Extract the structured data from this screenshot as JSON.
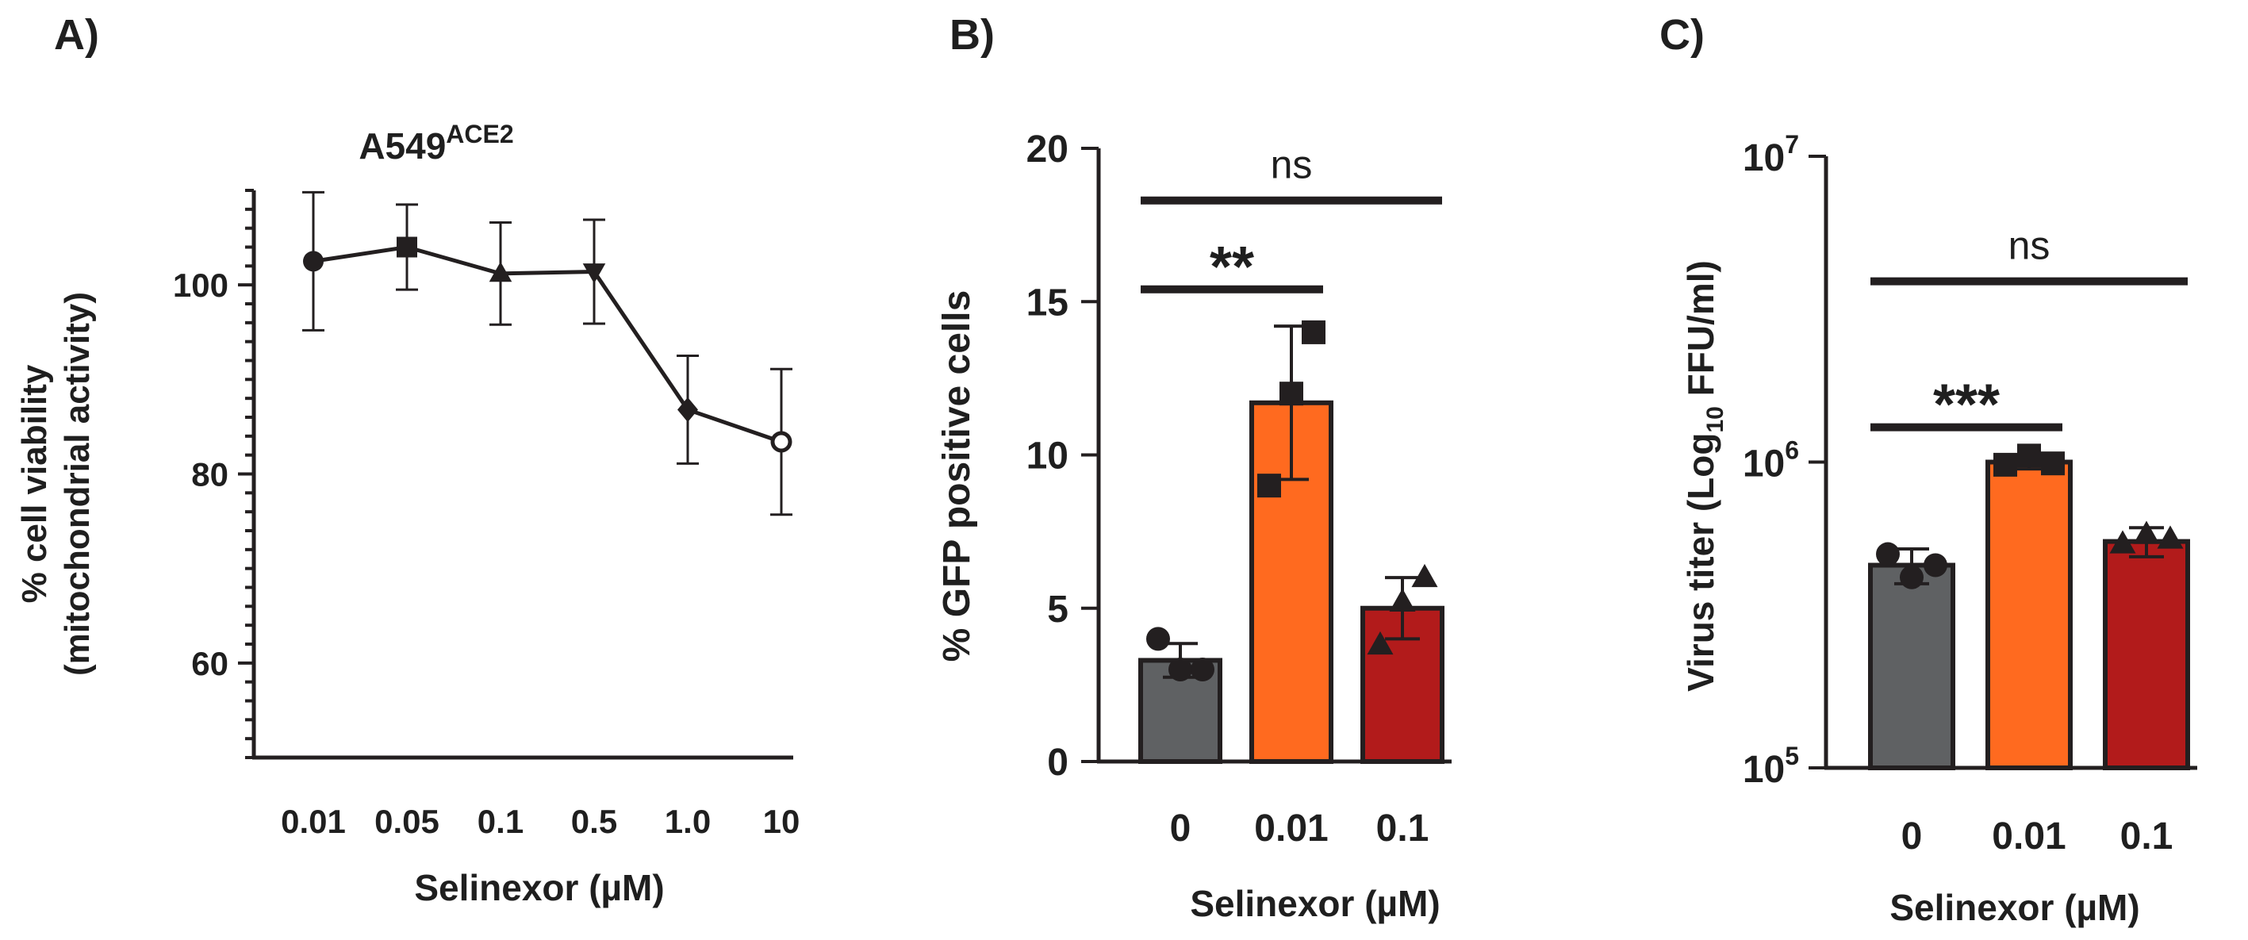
{
  "figure": {
    "panels": [
      "A)",
      "B)",
      "C)"
    ],
    "colors": {
      "ink": "#231f20",
      "gray": "#5f6163",
      "orange": "#ff6a1f",
      "red": "#b21b1b"
    }
  },
  "chart_data": [
    {
      "panel_label": "A)",
      "type": "line",
      "title_main": "A549",
      "title_sup": "ACE2",
      "ylabel_line1": "% cell viability",
      "ylabel_line2": "(mitochondrial activity)",
      "xlabel": "Selinexor (µM)",
      "categories": [
        "0.01",
        "0.05",
        "0.1",
        "0.5",
        "1.0",
        "10"
      ],
      "values": [
        102.5,
        104,
        101.2,
        101.4,
        86.8,
        83.4
      ],
      "errors": [
        7.3,
        4.5,
        5.4,
        5.5,
        5.7,
        7.7
      ],
      "markers": [
        "circle",
        "square",
        "triangle-up",
        "triangle-down",
        "diamond",
        "open-circle"
      ],
      "ylim": [
        50,
        110
      ],
      "yticks": [
        60,
        80,
        100
      ]
    },
    {
      "panel_label": "B)",
      "type": "bar",
      "ylabel": "% GFP positive cells",
      "xlabel": "Selinexor (µM)",
      "categories": [
        "0",
        "0.01",
        "0.1"
      ],
      "values": [
        3.3,
        11.7,
        5.0
      ],
      "errors": [
        0.55,
        2.5,
        1.0
      ],
      "points": [
        [
          4.0,
          3.0,
          3.0
        ],
        [
          9.0,
          12.0,
          14.0
        ],
        [
          3.8,
          5.2,
          6.0
        ]
      ],
      "markers": [
        "circle",
        "square",
        "triangle-up"
      ],
      "bar_colors": [
        "#5f6163",
        "#ff6a1f",
        "#b21b1b"
      ],
      "ylim": [
        0,
        20
      ],
      "yticks": [
        0,
        5,
        10,
        15,
        20
      ],
      "annotations": [
        {
          "text": "**",
          "from": 0,
          "to": 1,
          "y": 15.4
        },
        {
          "text": "ns",
          "from": 0,
          "to": 2,
          "y": 18.3
        }
      ]
    },
    {
      "panel_label": "C)",
      "type": "bar",
      "scale": "log",
      "ylabel_pre": "Virus titer (Log",
      "ylabel_sub": "10",
      "ylabel_post": " FFU/ml)",
      "xlabel": "Selinexor (µM)",
      "categories": [
        "0",
        "0.01",
        "0.1"
      ],
      "values": [
        460000,
        1000000,
        550000
      ],
      "errors": [
        60000,
        50000,
        60000
      ],
      "points": [
        [
          500000,
          420000,
          460000
        ],
        [
          980000,
          1050000,
          990000
        ],
        [
          540000,
          580000,
          560000
        ]
      ],
      "markers": [
        "circle",
        "square",
        "triangle-up"
      ],
      "bar_colors": [
        "#5f6163",
        "#ff6a1f",
        "#b21b1b"
      ],
      "ylim": [
        100000,
        10000000
      ],
      "yticks": [
        100000,
        1000000,
        10000000
      ],
      "ytick_base": "10",
      "ytick_exponents": [
        "5",
        "6",
        "7"
      ],
      "annotations": [
        {
          "text": "***",
          "from": 0,
          "to": 1,
          "y": 1300000
        },
        {
          "text": "ns",
          "from": 0,
          "to": 2,
          "y": 3900000
        }
      ]
    }
  ]
}
